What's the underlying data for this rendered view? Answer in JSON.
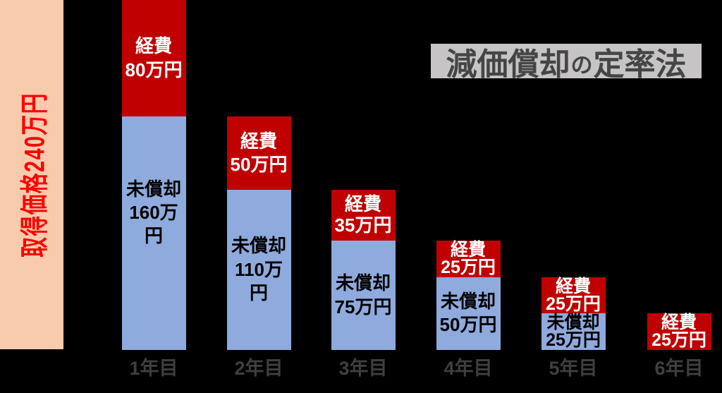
{
  "title": {
    "main": "減価償却",
    "particle": "の",
    "rest": "定率法",
    "full": "減価償却の定率法"
  },
  "reference_bar": {
    "label": "取得価格240万円",
    "value": 240,
    "unit": "万円"
  },
  "chart_data": {
    "type": "bar",
    "stacked": true,
    "title": "減価償却の定率法",
    "unit": "万円",
    "categories": [
      "1年目",
      "2年目",
      "3年目",
      "4年目",
      "5年目",
      "6年目"
    ],
    "series": [
      {
        "name": "経費",
        "values": [
          80,
          50,
          35,
          25,
          25,
          25
        ],
        "color": "#C00000",
        "text_color": "#FFFFFF"
      },
      {
        "name": "未償却",
        "values": [
          160,
          110,
          75,
          50,
          25,
          0
        ],
        "color": "#8FAADC",
        "text_color": "#000000"
      }
    ],
    "ylim": [
      0,
      240
    ],
    "grid": false,
    "legend": "none",
    "xlabel": "",
    "ylabel": ""
  },
  "colors": {
    "background": "#000000",
    "expense_red": "#C00000",
    "undepreciated_blue": "#8FAADC",
    "acquisition_peach": "#F8CBAD",
    "acquisition_text_red": "#FF0000",
    "title_bg_gray": "#C6C4C4",
    "title_text_gray": "#454545",
    "axis_label_gray": "#3F3F41",
    "expense_text_white": "#FFFFFF",
    "undepreciated_text_black": "#000000"
  }
}
